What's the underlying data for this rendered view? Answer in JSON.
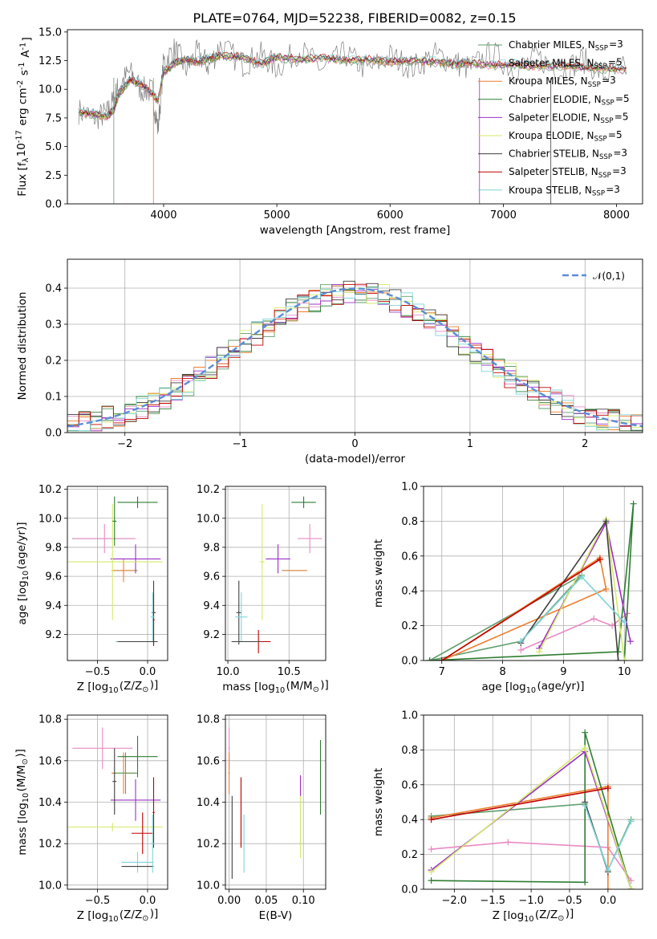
{
  "title": "PLATE=0764, MJD=52238, FIBERID=0082, z=0.15",
  "series": [
    {
      "name": "Chabrier MILES, N$_{SSP}$=3",
      "color": "#5f9e6e"
    },
    {
      "name": "Salpeter MILES, N$_{SSP}$=5",
      "color": "#e88bc4"
    },
    {
      "name": "Kroupa MILES, N$_{SSP}$=3",
      "color": "#ee7f2d"
    },
    {
      "name": "Chabrier ELODIE, N$_{SSP}$=5",
      "color": "#2e7d32"
    },
    {
      "name": "Salpeter ELODIE, N$_{SSP}$=5",
      "color": "#9b30c8"
    },
    {
      "name": "Kroupa ELODIE, N$_{SSP}$=5",
      "color": "#d4ea6b"
    },
    {
      "name": "Chabrier STELIB, N$_{SSP}$=3",
      "color": "#404040"
    },
    {
      "name": "Salpeter STELIB, N$_{SSP}$=3",
      "color": "#c00000"
    },
    {
      "name": "Kroupa STELIB, N$_{SSP}$=3",
      "color": "#7fd4d8"
    }
  ],
  "chart_data": [
    {
      "id": "spectrum",
      "type": "line",
      "xlabel": "wavelength [Angstrom, rest frame]",
      "ylabel": "Flux [f$_\\lambda$10$^{-17}$ erg cm$^{-2}$ s$^{-1}$ A$^{-1}$]",
      "xlim": [
        3150,
        8230
      ],
      "ylim": [
        0,
        15.2
      ],
      "xticks": [
        4000,
        5000,
        6000,
        7000,
        8000
      ],
      "yticks": [
        0.0,
        2.5,
        5.0,
        7.5,
        10.0,
        12.5,
        15.0
      ],
      "grid": false,
      "legend": "upper right",
      "x": [
        3250,
        3400,
        3500,
        3560,
        3600,
        3700,
        3800,
        3900,
        3950,
        4000,
        4100,
        4200,
        4300,
        4400,
        4500,
        4700,
        4860,
        5000,
        5200,
        5400,
        5600,
        5800,
        6000,
        6200,
        6400,
        6563,
        6700,
        6900,
        7100,
        7300,
        7500,
        7700,
        7900,
        8100
      ],
      "model": [
        8.0,
        7.8,
        7.6,
        8.2,
        9.5,
        10.8,
        10.5,
        9.6,
        9.0,
        11.5,
        12.3,
        12.6,
        12.4,
        12.7,
        12.9,
        12.8,
        12.2,
        12.8,
        12.6,
        12.7,
        12.5,
        12.6,
        12.4,
        12.5,
        12.4,
        12.2,
        12.3,
        12.1,
        12.2,
        12.0,
        12.1,
        11.9,
        11.8,
        11.7
      ],
      "observed": [
        8.1,
        7.5,
        7.9,
        9.0,
        10.2,
        11.5,
        10.0,
        9.8,
        6.5,
        12.4,
        13.5,
        11.8,
        13.2,
        12.0,
        13.8,
        12.2,
        13.0,
        11.9,
        13.4,
        11.8,
        13.1,
        11.7,
        12.9,
        11.9,
        13.0,
        12.4,
        11.8,
        13.2,
        11.6,
        12.8,
        11.5,
        12.6,
        11.2,
        11.9
      ],
      "masked_starts": [
        3560,
        3910,
        6790,
        7420
      ]
    },
    {
      "id": "residuals",
      "type": "line",
      "xlabel": "(data-model)/error",
      "ylabel": "Normed distribution",
      "xlim": [
        -2.5,
        2.5
      ],
      "ylim": [
        0,
        0.48
      ],
      "xticks": [
        -2,
        -1,
        0,
        1,
        2
      ],
      "yticks": [
        0.0,
        0.1,
        0.2,
        0.3,
        0.4
      ],
      "grid": true,
      "legend": "upper right",
      "normal_label": "$\\mathcal{N}(0,1)$",
      "normal_color": "#5b8ed6",
      "bin_width": 0.1,
      "bin_start": -2.5
    },
    {
      "id": "age-vs-Z",
      "type": "scatter",
      "xlabel": "Z [log$_{10}$(Z/Z$_\\odot$)]",
      "ylabel": "age  [log$_{10}$(age/yr)]",
      "xlim": [
        -0.8,
        0.2
      ],
      "ylim": [
        9.02,
        10.22
      ],
      "xticks": [
        -0.5,
        0.0
      ],
      "yticks": [
        9.2,
        9.4,
        9.6,
        9.8,
        10.0,
        10.2
      ],
      "grid": true,
      "points": [
        {
          "s": 0,
          "x": -0.45,
          "xerr": 0.3,
          "y": 9.86,
          "yerr": 0.0
        },
        {
          "s": 0,
          "x": -0.22,
          "xerr": 0.12,
          "y": 9.64,
          "yerr": 0.0
        },
        {
          "s": 1,
          "x": -0.43,
          "xerr": 0.31,
          "y": 9.86,
          "yerr": 0.1
        },
        {
          "s": 2,
          "x": -0.24,
          "xerr": 0.12,
          "y": 9.64,
          "yerr": 0.08
        },
        {
          "s": 3,
          "x": -0.1,
          "xerr": 0.2,
          "y": 10.11,
          "yerr": 0.04
        },
        {
          "s": 4,
          "x": -0.12,
          "xerr": 0.25,
          "y": 9.72,
          "yerr": 0.1
        },
        {
          "s": 5,
          "x": -0.35,
          "xerr": 0.5,
          "y": 9.7,
          "yerr": 0.4
        },
        {
          "s": 6,
          "x": 0.06,
          "xerr": 0.02,
          "y": 9.35,
          "yerr": 0.22
        },
        {
          "s": 7,
          "x": 0.06,
          "xerr": 0.01,
          "y": 9.3,
          "yerr": 0.18
        },
        {
          "s": 8,
          "x": 0.05,
          "xerr": 0.02,
          "y": 9.32,
          "yerr": 0.17
        },
        {
          "s": 8,
          "x": -0.12,
          "xerr": 0.2,
          "y": 9.15,
          "yerr": 0.0
        },
        {
          "s": 6,
          "x": -0.1,
          "xerr": 0.2,
          "y": 9.15,
          "yerr": 0.0
        },
        {
          "s": 3,
          "x": -0.33,
          "xerr": 0.02,
          "y": 9.98,
          "yerr": 0.17
        }
      ]
    },
    {
      "id": "age-vs-mass",
      "type": "scatter",
      "xlabel": "mass [log$_{10}$(M/M$_\\odot$)]",
      "ylabel": "",
      "xlim": [
        9.98,
        10.8
      ],
      "ylim": [
        9.02,
        10.22
      ],
      "xticks": [
        10.0,
        10.5
      ],
      "yticks": [
        9.2,
        9.4,
        9.6,
        9.8,
        10.0,
        10.2
      ],
      "grid": true,
      "points": [
        {
          "s": 0,
          "x": 10.54,
          "xerr": 0.1,
          "y": 9.64,
          "yerr": 0.0
        },
        {
          "s": 1,
          "x": 10.67,
          "xerr": 0.1,
          "y": 9.86,
          "yerr": 0.1
        },
        {
          "s": 2,
          "x": 10.55,
          "xerr": 0.1,
          "y": 9.64,
          "yerr": 0.0
        },
        {
          "s": 3,
          "x": 10.62,
          "xerr": 0.1,
          "y": 10.11,
          "yerr": 0.04
        },
        {
          "s": 4,
          "x": 10.41,
          "xerr": 0.1,
          "y": 9.72,
          "yerr": 0.1
        },
        {
          "s": 5,
          "x": 10.28,
          "xerr": 0.02,
          "y": 9.7,
          "yerr": 0.4
        },
        {
          "s": 6,
          "x": 10.09,
          "xerr": 0.02,
          "y": 9.35,
          "yerr": 0.22
        },
        {
          "s": 7,
          "x": 10.25,
          "xerr": 0.1,
          "y": 9.15,
          "yerr": 0.08
        },
        {
          "s": 8,
          "x": 10.11,
          "xerr": 0.05,
          "y": 9.32,
          "yerr": 0.17
        },
        {
          "s": 6,
          "x": 10.15,
          "xerr": 0.12,
          "y": 9.15,
          "yerr": 0.0
        }
      ]
    },
    {
      "id": "weight-vs-age",
      "type": "line",
      "xlabel": "age  [log$_{10}$(age/yr)]",
      "ylabel": "mass weight",
      "xlim": [
        6.7,
        10.3
      ],
      "ylim": [
        0,
        1
      ],
      "xticks": [
        7,
        8,
        9,
        10
      ],
      "yticks": [
        0.0,
        0.2,
        0.4,
        0.6,
        0.8,
        1.0
      ],
      "grid": true,
      "series_points": [
        {
          "s": 0,
          "x": [
            6.8,
            9.3,
            8.3,
            6.8
          ],
          "y": [
            0.0,
            0.49,
            0.11,
            0.0
          ]
        },
        {
          "s": 1,
          "x": [
            8.3,
            9.5,
            9.8,
            10.05
          ],
          "y": [
            0.06,
            0.24,
            0.2,
            0.27
          ]
        },
        {
          "s": 2,
          "x": [
            7.0,
            9.6,
            9.7,
            7.0
          ],
          "y": [
            0.0,
            0.59,
            0.41,
            0.0
          ]
        },
        {
          "s": 3,
          "x": [
            6.8,
            9.9,
            10.15,
            10.0
          ],
          "y": [
            0.0,
            0.05,
            0.9,
            0.0
          ]
        },
        {
          "s": 4,
          "x": [
            8.6,
            9.7,
            10.1
          ],
          "y": [
            0.07,
            0.79,
            0.11
          ]
        },
        {
          "s": 5,
          "x": [
            8.6,
            9.7,
            10.0
          ],
          "y": [
            0.05,
            0.81,
            0.0
          ]
        },
        {
          "s": 6,
          "x": [
            8.3,
            9.7,
            9.9
          ],
          "y": [
            0.1,
            0.8,
            0.0
          ]
        },
        {
          "s": 7,
          "x": [
            7.0,
            9.6
          ],
          "y": [
            0.0,
            0.58
          ]
        },
        {
          "s": 8,
          "x": [
            8.3,
            9.3,
            10.0
          ],
          "y": [
            0.11,
            0.48,
            0.22
          ]
        }
      ]
    },
    {
      "id": "mass-vs-Z",
      "type": "scatter",
      "xlabel": "Z [log$_{10}$(Z/Z$_\\odot$)]",
      "ylabel": "mass [log$_{10}$(M/M$_\\odot$)]",
      "xlim": [
        -0.8,
        0.2
      ],
      "ylim": [
        9.98,
        10.82
      ],
      "xticks": [
        -0.5,
        0.0
      ],
      "yticks": [
        10.0,
        10.2,
        10.4,
        10.6,
        10.8
      ],
      "grid": true,
      "points": [
        {
          "s": 1,
          "x": -0.45,
          "xerr": 0.3,
          "y": 10.66,
          "yerr": 0.1
        },
        {
          "s": 2,
          "x": -0.24,
          "xerr": 0.12,
          "y": 10.54,
          "yerr": 0.1
        },
        {
          "s": 0,
          "x": -0.22,
          "xerr": 0.12,
          "y": 10.54,
          "yerr": 0.1
        },
        {
          "s": 3,
          "x": -0.1,
          "xerr": 0.2,
          "y": 10.62,
          "yerr": 0.1
        },
        {
          "s": 4,
          "x": -0.12,
          "xerr": 0.25,
          "y": 10.41,
          "yerr": 0.1
        },
        {
          "s": 5,
          "x": -0.35,
          "xerr": 0.5,
          "y": 10.28,
          "yerr": 0.02
        },
        {
          "s": 7,
          "x": -0.05,
          "xerr": 0.11,
          "y": 10.25,
          "yerr": 0.1
        },
        {
          "s": 8,
          "x": -0.1,
          "xerr": 0.16,
          "y": 10.11,
          "yerr": 0.05
        },
        {
          "s": 6,
          "x": -0.1,
          "xerr": 0.16,
          "y": 10.09,
          "yerr": 0.0
        },
        {
          "s": 6,
          "x": -0.33,
          "xerr": 0.02,
          "y": 10.5,
          "yerr": 0.16
        },
        {
          "s": 7,
          "x": 0.06,
          "xerr": 0.01,
          "y": 10.35,
          "yerr": 0.17
        },
        {
          "s": 8,
          "x": 0.05,
          "xerr": 0.02,
          "y": 10.2,
          "yerr": 0.14
        }
      ]
    },
    {
      "id": "mass-vs-ebv",
      "type": "scatter",
      "xlabel": "E(B-V)",
      "ylabel": "",
      "xlim": [
        -0.005,
        0.13
      ],
      "ylim": [
        9.98,
        10.82
      ],
      "xticks": [
        0.0,
        0.05,
        0.1
      ],
      "yticks": [
        10.0,
        10.2,
        10.4,
        10.6,
        10.8
      ],
      "grid": true,
      "points": [
        {
          "s": 1,
          "x": 0.0,
          "xerr": 0.001,
          "y": 10.66,
          "yerr": 0.1
        },
        {
          "s": 2,
          "x": 0.0,
          "xerr": 0.001,
          "y": 10.54,
          "yerr": 0.1
        },
        {
          "s": 6,
          "x": 0.004,
          "xerr": 0.0005,
          "y": 10.23,
          "yerr": 0.2
        },
        {
          "s": 7,
          "x": 0.016,
          "xerr": 0.0005,
          "y": 10.35,
          "yerr": 0.17
        },
        {
          "s": 8,
          "x": 0.02,
          "xerr": 0.0005,
          "y": 10.2,
          "yerr": 0.14
        },
        {
          "s": 4,
          "x": 0.096,
          "xerr": 0.0005,
          "y": 10.36,
          "yerr": 0.17
        },
        {
          "s": 5,
          "x": 0.096,
          "xerr": 0.0005,
          "y": 10.28,
          "yerr": 0.15
        },
        {
          "s": 3,
          "x": 0.123,
          "xerr": 0.0005,
          "y": 10.52,
          "yerr": 0.18
        }
      ]
    },
    {
      "id": "weight-vs-Z",
      "type": "line",
      "xlabel": "Z [log$_{10}$(Z/Z$_\\odot$)]",
      "ylabel": "mass weight",
      "xlim": [
        -2.4,
        0.45
      ],
      "ylim": [
        0,
        1
      ],
      "xticks": [
        -2.0,
        -1.5,
        -1.0,
        -0.5,
        0.0
      ],
      "yticks": [
        0.0,
        0.2,
        0.4,
        0.6,
        0.8,
        1.0
      ],
      "grid": true,
      "series_points": [
        {
          "s": 0,
          "x": [
            -2.3,
            -0.3,
            0.0,
            0.3
          ],
          "y": [
            0.42,
            0.49,
            0.11,
            0.4
          ]
        },
        {
          "s": 1,
          "x": [
            -2.3,
            -1.3,
            0.0,
            0.3
          ],
          "y": [
            0.23,
            0.27,
            0.24,
            0.05
          ]
        },
        {
          "s": 2,
          "x": [
            -2.3,
            0.0,
            0.0
          ],
          "y": [
            0.41,
            0.59,
            0.0
          ]
        },
        {
          "s": 3,
          "x": [
            -2.3,
            -0.3,
            -0.3,
            0.3
          ],
          "y": [
            0.05,
            0.04,
            0.9,
            0.0
          ]
        },
        {
          "s": 4,
          "x": [
            -2.3,
            -0.3,
            0.3
          ],
          "y": [
            0.11,
            0.79,
            0.0
          ]
        },
        {
          "s": 5,
          "x": [
            -2.3,
            -0.3,
            0.3
          ],
          "y": [
            0.1,
            0.81,
            0.0
          ]
        },
        {
          "s": 6,
          "x": [
            -0.3,
            0.0
          ],
          "y": [
            0.5,
            0.1
          ]
        },
        {
          "s": 7,
          "x": [
            -2.3,
            0.0
          ],
          "y": [
            0.4,
            0.58
          ]
        },
        {
          "s": 8,
          "x": [
            -0.3,
            0.0,
            0.3
          ],
          "y": [
            0.48,
            0.11,
            0.39
          ]
        }
      ]
    }
  ]
}
